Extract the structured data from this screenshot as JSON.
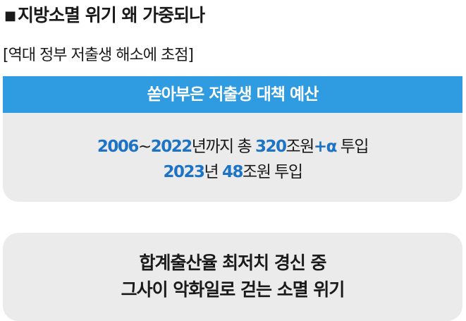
{
  "header": {
    "bullet": "■",
    "title": "지방소멸 위기 왜 가중되나",
    "subtitle": "[역대 정부 저출생 해소에 초점]"
  },
  "top_card": {
    "banner": "쏟아부은 저출생 대책 예산",
    "line1": {
      "num1": "2006",
      "sep": "~",
      "num2": "2022",
      "text1": "년까지 총 ",
      "num3": "320",
      "text2": "조원",
      "num4": "+α",
      "text3": " 투입"
    },
    "line2": {
      "num1": "2023",
      "text1": "년 ",
      "num2": "48",
      "text2": "조원 투입"
    }
  },
  "bottom_card": {
    "line1": "합계출산율 최저치 경신 중",
    "line2": "그사이 악화일로 걷는 소멸 위기"
  },
  "colors": {
    "accent": "#2f9be0",
    "number": "#1d74c7",
    "card_bg": "#ebebeb"
  }
}
